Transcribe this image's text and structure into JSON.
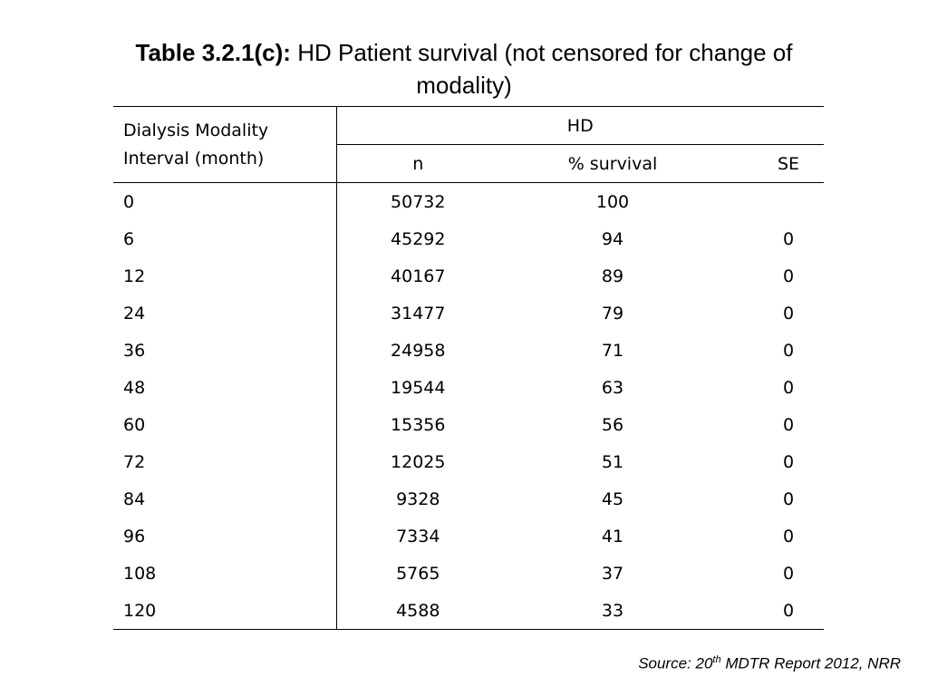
{
  "title": {
    "label": "Table 3.2.1(c):",
    "text": "HD Patient survival (not censored for change of modality)"
  },
  "table": {
    "interval_header_line1": "Dialysis Modality",
    "interval_header_line2": "Interval (month)",
    "group_header": "HD",
    "columns": [
      "n",
      "% survival",
      "SE"
    ],
    "rows": [
      {
        "interval": "0",
        "n": "50732",
        "survival": "100",
        "se": ""
      },
      {
        "interval": "6",
        "n": "45292",
        "survival": "94",
        "se": "0"
      },
      {
        "interval": "12",
        "n": "40167",
        "survival": "89",
        "se": "0"
      },
      {
        "interval": "24",
        "n": "31477",
        "survival": "79",
        "se": "0"
      },
      {
        "interval": "36",
        "n": "24958",
        "survival": "71",
        "se": "0"
      },
      {
        "interval": "48",
        "n": "19544",
        "survival": "63",
        "se": "0"
      },
      {
        "interval": "60",
        "n": "15356",
        "survival": "56",
        "se": "0"
      },
      {
        "interval": "72",
        "n": "12025",
        "survival": "51",
        "se": "0"
      },
      {
        "interval": "84",
        "n": "9328",
        "survival": "45",
        "se": "0"
      },
      {
        "interval": "96",
        "n": "7334",
        "survival": "41",
        "se": "0"
      },
      {
        "interval": "108",
        "n": "5765",
        "survival": "37",
        "se": "0"
      },
      {
        "interval": "120",
        "n": "4588",
        "survival": "33",
        "se": "0"
      }
    ]
  },
  "source": {
    "prefix": "Source: 20",
    "superscript": "th",
    "suffix": " MDTR Report 2012, NRR"
  }
}
